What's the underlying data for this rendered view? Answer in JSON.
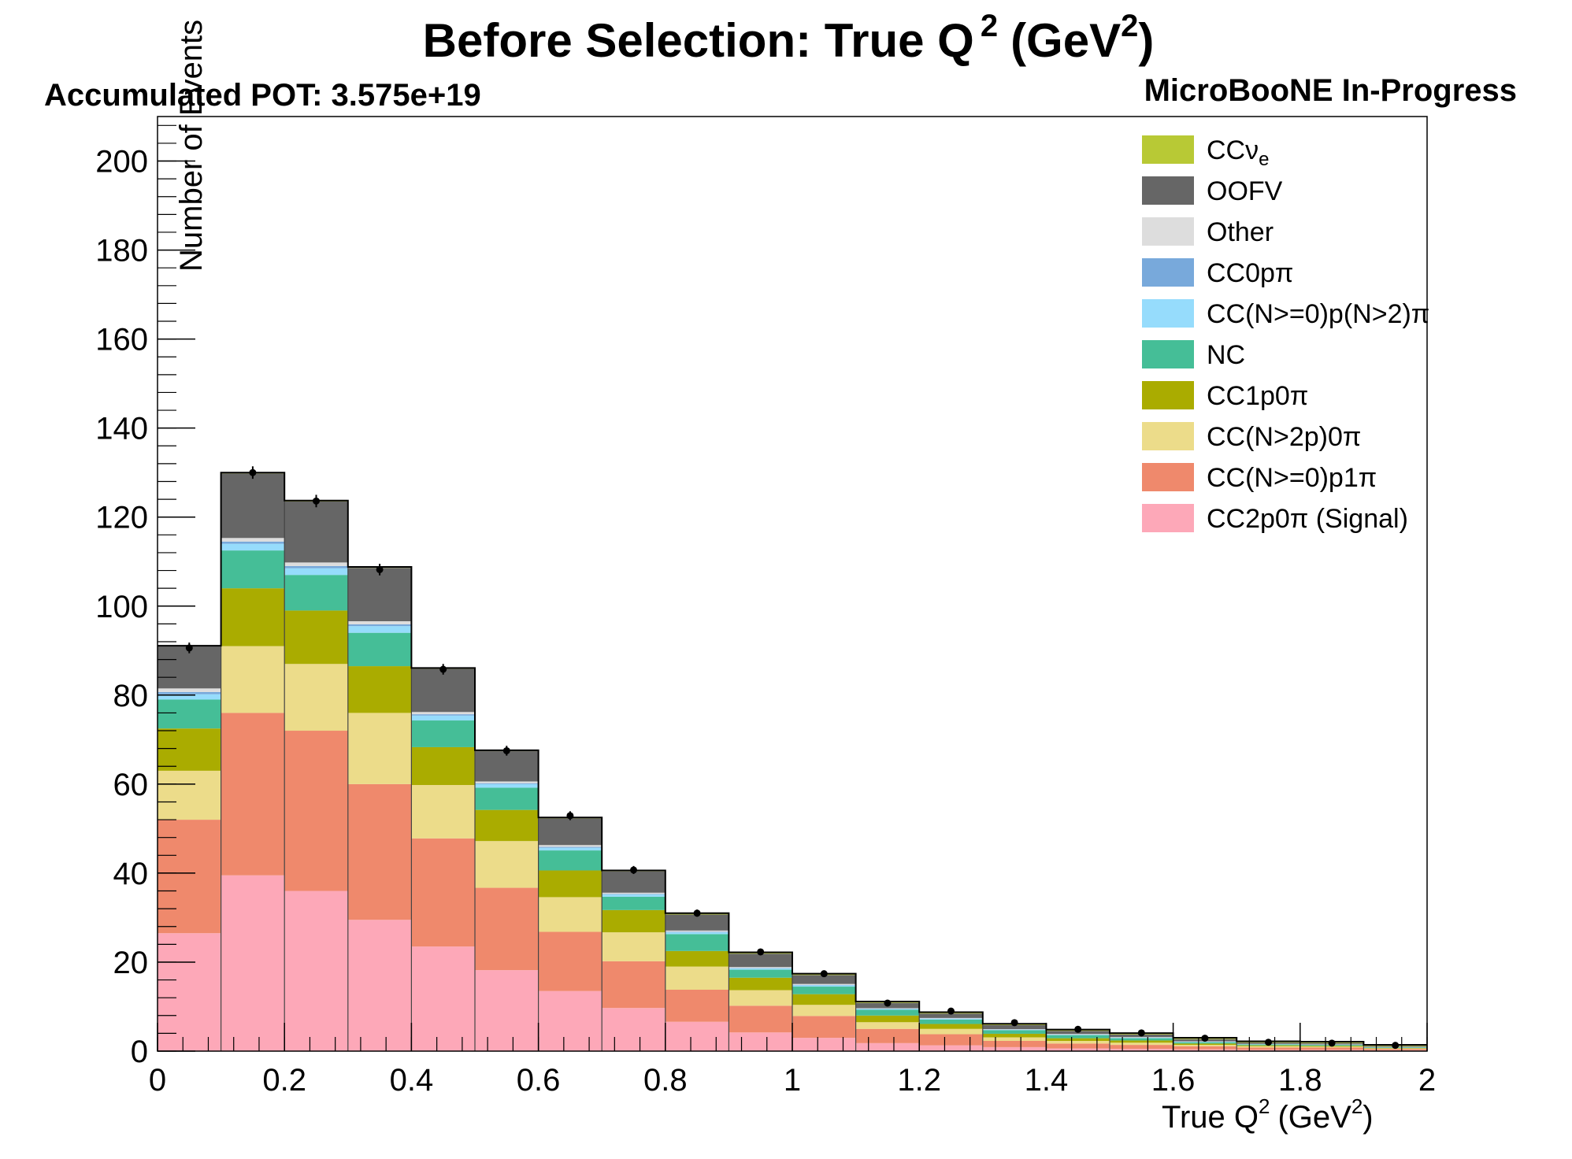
{
  "title": "Before Selection: True Q",
  "title_sup": "2",
  "title_unit": "(GeV",
  "title_unit_sup": "2",
  "title_close": ")",
  "pot_label": "Accumulated POT: 3.575e+19",
  "experiment_label": "MicroBooNE In-Progress",
  "chart_data": {
    "type": "bar",
    "stacked": true,
    "xlabel": "True Q",
    "xlabel_sup": "2",
    "xlabel_unit": "(GeV",
    "xlabel_unit_sup": "2",
    "xlabel_close": ")",
    "ylabel": "Number of Events",
    "xlim": [
      0,
      2
    ],
    "ylim": [
      0,
      210
    ],
    "x_ticks": [
      "0",
      "0.2",
      "0.4",
      "0.6",
      "0.8",
      "1",
      "1.2",
      "1.4",
      "1.6",
      "1.8",
      "2"
    ],
    "y_ticks": [
      "0",
      "20",
      "40",
      "60",
      "80",
      "100",
      "120",
      "140",
      "160",
      "180",
      "200"
    ],
    "bin_edges": [
      0,
      0.1,
      0.2,
      0.3,
      0.4,
      0.5,
      0.6,
      0.7,
      0.8,
      0.9,
      1.0,
      1.1,
      1.2,
      1.3,
      1.4,
      1.5,
      1.6,
      1.7,
      1.8,
      1.9,
      2.0
    ],
    "legend_position": "top-right",
    "series": [
      {
        "name": "CC2p0π (Signal)",
        "color": "#fda8b8",
        "values": [
          26.5,
          39.5,
          36,
          29.5,
          23.5,
          18.2,
          13.5,
          9.7,
          6.6,
          4.2,
          3.0,
          1.8,
          1.3,
          0.9,
          0.6,
          0.5,
          0.4,
          0.3,
          0.3,
          0.2
        ]
      },
      {
        "name": "CC(N>=0)p1π",
        "color": "#ef896c",
        "values": [
          25.5,
          36.5,
          36,
          30.5,
          24.3,
          18.5,
          13.3,
          10.5,
          7.2,
          6.0,
          4.9,
          3.2,
          2.5,
          1.4,
          1.1,
          0.9,
          0.7,
          0.5,
          0.5,
          0.3
        ]
      },
      {
        "name": "CC(N>2p)0π",
        "color": "#ecdc8a",
        "values": [
          11,
          15,
          15,
          16,
          12,
          10.5,
          7.8,
          6.5,
          5.2,
          3.5,
          2.5,
          1.5,
          1.2,
          0.8,
          0.6,
          0.5,
          0.3,
          0.3,
          0.2,
          0.1
        ]
      },
      {
        "name": "CC1p0π",
        "color": "#aaac00",
        "values": [
          9.5,
          13,
          12,
          10.5,
          8.5,
          7,
          6,
          5,
          3.5,
          2.8,
          2.4,
          1.5,
          1.1,
          0.8,
          0.6,
          0.5,
          0.3,
          0.2,
          0.2,
          0.1
        ]
      },
      {
        "name": "NC",
        "color": "#45be97",
        "values": [
          6.5,
          8.5,
          8,
          7.5,
          6,
          5,
          4.5,
          3,
          3.8,
          1.8,
          1.7,
          1.3,
          1,
          0.8,
          0.7,
          0.5,
          0.3,
          0.2,
          0.2,
          0.1
        ]
      },
      {
        "name": "CC(N>=0)p(N>2)π",
        "color": "#96dcfc",
        "values": [
          1.2,
          1.5,
          1.5,
          1.5,
          1.1,
          0.8,
          0.6,
          0.5,
          0.4,
          0.3,
          0.3,
          0.2,
          0.2,
          0.1,
          0.1,
          0.1,
          0.1,
          0.05,
          0.05,
          0.05
        ]
      },
      {
        "name": "CC0pπ",
        "color": "#78a9db",
        "values": [
          0.5,
          0.5,
          0.5,
          0.4,
          0.3,
          0.2,
          0.2,
          0.1,
          0.1,
          0.1,
          0.1,
          0.05,
          0.05,
          0.05,
          0.05,
          0.05,
          0.05,
          0.02,
          0.02,
          0.02
        ]
      },
      {
        "name": "Other",
        "color": "#dddddd",
        "values": [
          0.8,
          0.8,
          0.8,
          0.7,
          0.5,
          0.4,
          0.4,
          0.3,
          0.3,
          0.2,
          0.2,
          0.1,
          0.1,
          0.1,
          0.1,
          0.1,
          0.05,
          0.05,
          0.05,
          0.05
        ]
      },
      {
        "name": "OOFV",
        "color": "#666666",
        "values": [
          9.5,
          14.5,
          13.7,
          12,
          9.7,
          6.8,
          6.0,
          4.8,
          3.6,
          3.0,
          2.0,
          1.2,
          1.0,
          0.9,
          0.7,
          0.6,
          0.5,
          0.3,
          0.3,
          0.2
        ]
      },
      {
        "name": "CCν",
        "name_sub": "e",
        "color": "#b8c935",
        "values": [
          0.1,
          0.2,
          0.2,
          0.2,
          0.2,
          0.2,
          0.2,
          0.2,
          0.3,
          0.3,
          0.3,
          0.3,
          0.3,
          0.3,
          0.3,
          0.3,
          0.3,
          0.3,
          0.3,
          0.3
        ]
      }
    ],
    "data_points": {
      "x": [
        0.05,
        0.15,
        0.25,
        0.35,
        0.45,
        0.55,
        0.65,
        0.75,
        0.85,
        0.95,
        1.05,
        1.15,
        1.25,
        1.35,
        1.45,
        1.55,
        1.65,
        1.75,
        1.85,
        1.95
      ],
      "y": [
        90.6,
        130,
        123.6,
        108.2,
        85.8,
        67.5,
        52.9,
        40.7,
        31,
        22.3,
        17.4,
        10.8,
        9.0,
        6.4,
        4.9,
        4.1,
        2.9,
        2.0,
        1.8,
        1.3
      ],
      "err": [
        1.2,
        1.4,
        1.4,
        1.3,
        1.2,
        1.1,
        1.0,
        0.9,
        0.8,
        0.6,
        0.5,
        0.4,
        0.3,
        0.3,
        0.2,
        0.2,
        0.2,
        0.2,
        0.2,
        0.2
      ]
    }
  }
}
